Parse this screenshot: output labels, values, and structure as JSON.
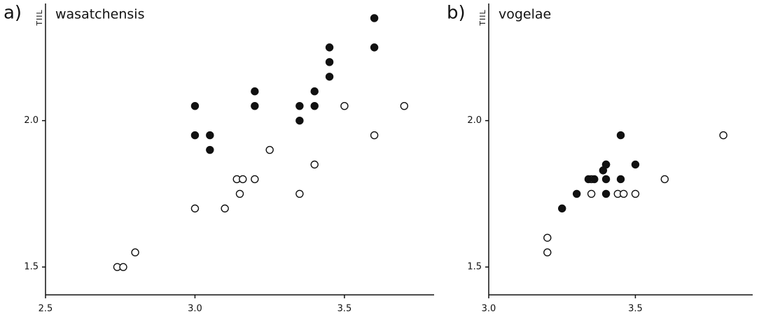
{
  "chart_data": [
    {
      "type": "scatter",
      "panel_label": "a)",
      "title": "wasatchensis",
      "ylabel": "TIIL",
      "xlim": [
        2.5,
        3.8
      ],
      "ylim": [
        1.405,
        2.4
      ],
      "xticks": [
        {
          "value": 2.5,
          "label": "2.5"
        },
        {
          "value": 3.0,
          "label": "3.0"
        },
        {
          "value": 3.5,
          "label": "3.5"
        }
      ],
      "yticks": [
        {
          "value": 1.5,
          "label": "1.5"
        },
        {
          "value": 2.0,
          "label": "2.0"
        }
      ],
      "series": [
        {
          "color": "#111111",
          "filled": true,
          "x": [
            3.0,
            3.0,
            3.05,
            3.05,
            3.2,
            3.2,
            3.35,
            3.35,
            3.4,
            3.4,
            3.45,
            3.45,
            3.45,
            3.6,
            3.6
          ],
          "values": [
            2.05,
            1.95,
            1.95,
            1.9,
            2.1,
            2.05,
            2.05,
            2.0,
            2.1,
            2.05,
            2.25,
            2.2,
            2.15,
            2.35,
            2.25
          ]
        },
        {
          "color": "#111111",
          "filled": false,
          "x": [
            2.74,
            2.76,
            2.8,
            3.0,
            3.1,
            3.14,
            3.16,
            3.15,
            3.2,
            3.25,
            3.35,
            3.4,
            3.5,
            3.6,
            3.7
          ],
          "values": [
            1.5,
            1.5,
            1.55,
            1.7,
            1.7,
            1.8,
            1.8,
            1.75,
            1.8,
            1.9,
            1.75,
            1.85,
            2.05,
            1.95,
            2.05
          ]
        }
      ]
    },
    {
      "type": "scatter",
      "panel_label": "b)",
      "title": "vogelae",
      "ylabel": "TIIL",
      "xlim": [
        3.0,
        3.9
      ],
      "ylim": [
        1.405,
        2.4
      ],
      "xticks": [
        {
          "value": 3.0,
          "label": "3.0"
        },
        {
          "value": 3.5,
          "label": "3.5"
        }
      ],
      "yticks": [
        {
          "value": 1.5,
          "label": "1.5"
        },
        {
          "value": 2.0,
          "label": "2.0"
        }
      ],
      "series": [
        {
          "color": "#111111",
          "filled": false,
          "x": [
            3.2,
            3.2,
            3.35,
            3.35,
            3.4,
            3.44,
            3.46,
            3.5,
            3.6,
            3.8
          ],
          "values": [
            1.6,
            1.55,
            1.75,
            1.8,
            1.85,
            1.75,
            1.75,
            1.75,
            1.8,
            1.95
          ]
        },
        {
          "color": "#111111",
          "filled": true,
          "x": [
            3.45,
            3.5,
            3.45,
            3.4,
            3.4,
            3.34,
            3.36,
            3.3,
            3.25,
            3.4,
            3.39
          ],
          "values": [
            1.95,
            1.85,
            1.8,
            1.85,
            1.8,
            1.8,
            1.8,
            1.75,
            1.7,
            1.75,
            1.83
          ]
        }
      ]
    }
  ]
}
